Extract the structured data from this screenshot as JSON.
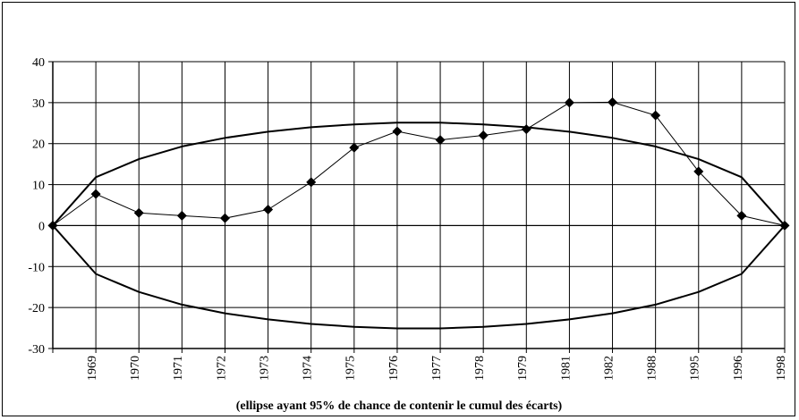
{
  "chart_data": {
    "type": "line",
    "title": "",
    "caption": "(ellipse ayant 95% de chance de contenir le cumul des écarts)",
    "xlabel": "",
    "ylabel": "",
    "categories": [
      "",
      "1969",
      "1970",
      "1971",
      "1972",
      "1973",
      "1974",
      "1975",
      "1976",
      "1977",
      "1978",
      "1979",
      "1981",
      "1982",
      "1988",
      "1995",
      "1996",
      "1998"
    ],
    "ylim": [
      -30,
      40
    ],
    "yticks": [
      -30,
      -20,
      -10,
      0,
      10,
      20,
      30,
      40
    ],
    "grid": true,
    "legend": "none",
    "series": [
      {
        "values": [
          0,
          7.7,
          3.1,
          2.4,
          1.8,
          3.9,
          10.6,
          19,
          23,
          20.9,
          22,
          23.5,
          30,
          30.1,
          26.9,
          13.2,
          2.4,
          0
        ],
        "marker": "diamond",
        "color": "#000000"
      },
      {
        "values": [
          0,
          11.8,
          16.2,
          19.3,
          21.4,
          22.9,
          24.0,
          24.7,
          25.1,
          25.1,
          24.7,
          24.0,
          22.9,
          21.4,
          19.3,
          16.2,
          11.8,
          0
        ],
        "marker": "none",
        "color": "#000000"
      },
      {
        "values": [
          0,
          -11.8,
          -16.2,
          -19.3,
          -21.4,
          -22.9,
          -24.0,
          -24.7,
          -25.1,
          -25.1,
          -24.7,
          -24.0,
          -22.9,
          -21.4,
          -19.3,
          -16.2,
          -11.8,
          0
        ],
        "marker": "none",
        "color": "#000000"
      }
    ]
  }
}
